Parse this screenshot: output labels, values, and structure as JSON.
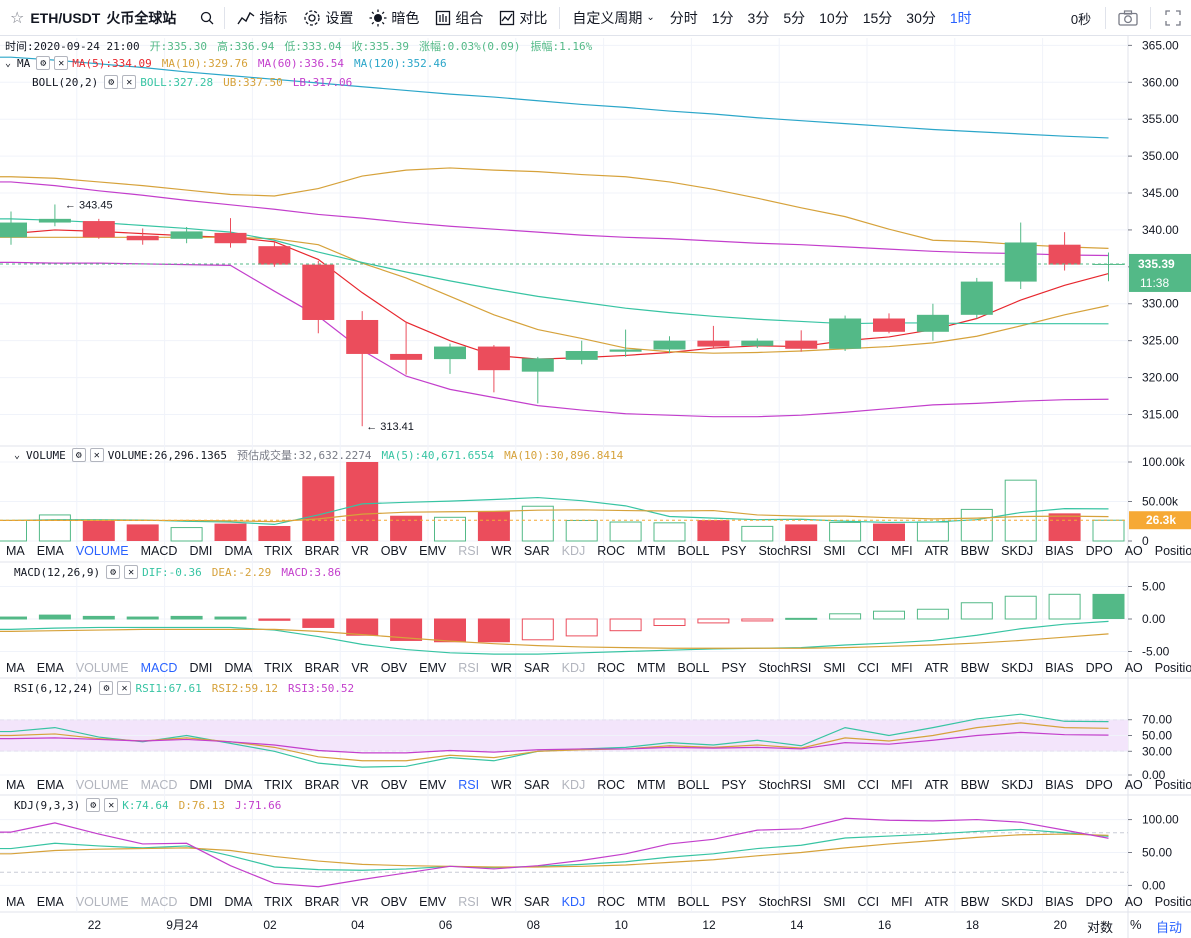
{
  "toolbar": {
    "symbol": "ETH/USDT",
    "exchange": "火币全球站",
    "indicators": "指标",
    "settings": "设置",
    "theme": "暗色",
    "combine": "组合",
    "compare": "对比",
    "custom_period": "自定义周期",
    "periods": [
      "分时",
      "1分",
      "3分",
      "5分",
      "10分",
      "15分",
      "30分",
      "1时"
    ],
    "active_period": "1时",
    "countdown": "0秒"
  },
  "legend": {
    "ohlc": {
      "time_label": "时间:2020-09-24 21:00",
      "open": "开:335.30",
      "high": "高:336.94",
      "low": "低:333.04",
      "close": "收:335.39",
      "change": "涨幅:0.03%(0.09)",
      "amplitude": "振幅:1.16%"
    },
    "ma": {
      "name": "MA",
      "ma5": "MA(5):334.09",
      "ma10": "MA(10):329.76",
      "ma60": "MA(60):336.54",
      "ma120": "MA(120):352.46"
    },
    "boll": {
      "name": "BOLL(20,2)",
      "boll": "BOLL:327.28",
      "ub": "UB:337.50",
      "lb": "LB:317.06"
    },
    "volume": {
      "name": "VOLUME",
      "vol": "VOLUME:26,296.1365",
      "est": "预估成交量:32,632.2274",
      "ma5": "MA(5):40,671.6554",
      "ma10": "MA(10):30,896.8414"
    },
    "macd": {
      "name": "MACD(12,26,9)",
      "dif": "DIF:-0.36",
      "dea": "DEA:-2.29",
      "macd": "MACD:3.86"
    },
    "rsi": {
      "name": "RSI(6,12,24)",
      "rsi1": "RSI1:67.61",
      "rsi2": "RSI2:59.12",
      "rsi3": "RSI3:50.52"
    },
    "kdj": {
      "name": "KDJ(9,3,3)",
      "k": "K:74.64",
      "d": "D:76.13",
      "j": "J:71.66"
    }
  },
  "indicator_tabs": [
    "MA",
    "EMA",
    "VOLUME",
    "MACD",
    "DMI",
    "DMA",
    "TRIX",
    "BRAR",
    "VR",
    "OBV",
    "EMV",
    "RSI",
    "WR",
    "SAR",
    "KDJ",
    "ROC",
    "MTM",
    "BOLL",
    "PSY",
    "StochRSI",
    "SMI",
    "CCI",
    "MFI",
    "ATR",
    "BBW",
    "SKDJ",
    "BIAS",
    "DPO",
    "AO",
    "Position"
  ],
  "footer": {
    "log_label": "对数",
    "pct_label": "%",
    "auto_label": "自动"
  },
  "colors": {
    "up": "#53b987",
    "down": "#eb4d5c",
    "ma5": "#e7272e",
    "ma10": "#d6a23b",
    "ma60": "#c33fcc",
    "ma120": "#2ba6c9",
    "boll": "#38c4a3",
    "accent": "#2962ff"
  },
  "chart_data": [
    {
      "type": "candlestick",
      "title": "ETH/USDT 1H",
      "x_ticks": [
        "22",
        "9月24",
        "02",
        "04",
        "06",
        "08",
        "10",
        "12",
        "14",
        "16",
        "18",
        "20"
      ],
      "ylim": [
        311,
        366
      ],
      "y_ticks": [
        "315.00",
        "320.00",
        "325.00",
        "330.00",
        "335.00",
        "340.00",
        "345.00",
        "350.00",
        "355.00",
        "360.00",
        "365.00"
      ],
      "candles": [
        {
          "o": 339,
          "h": 342.5,
          "l": 338,
          "c": 341
        },
        {
          "o": 341,
          "h": 343.45,
          "l": 340.5,
          "c": 341.5
        },
        {
          "o": 341.2,
          "h": 341.5,
          "l": 338.8,
          "c": 339
        },
        {
          "o": 339.2,
          "h": 340.2,
          "l": 338,
          "c": 338.6
        },
        {
          "o": 338.8,
          "h": 340.4,
          "l": 338.2,
          "c": 339.8
        },
        {
          "o": 339.6,
          "h": 341.6,
          "l": 337.6,
          "c": 338.2
        },
        {
          "o": 337.8,
          "h": 338.5,
          "l": 335,
          "c": 335.3
        },
        {
          "o": 335.3,
          "h": 335.8,
          "l": 326,
          "c": 327.8
        },
        {
          "o": 327.8,
          "h": 329,
          "l": 313.41,
          "c": 323.2
        },
        {
          "o": 323.2,
          "h": 327.6,
          "l": 320.4,
          "c": 322.4
        },
        {
          "o": 322.5,
          "h": 324.6,
          "l": 320.5,
          "c": 324.2
        },
        {
          "o": 324.2,
          "h": 324.4,
          "l": 318,
          "c": 321
        },
        {
          "o": 320.8,
          "h": 322.8,
          "l": 316.5,
          "c": 322.6
        },
        {
          "o": 322.4,
          "h": 325,
          "l": 321.8,
          "c": 323.6
        },
        {
          "o": 323.5,
          "h": 326.5,
          "l": 322.8,
          "c": 323.8
        },
        {
          "o": 323.8,
          "h": 325.6,
          "l": 323.3,
          "c": 325
        },
        {
          "o": 325,
          "h": 327,
          "l": 324,
          "c": 324.2
        },
        {
          "o": 324.3,
          "h": 325.3,
          "l": 324,
          "c": 325
        },
        {
          "o": 325,
          "h": 326.4,
          "l": 323.5,
          "c": 323.9
        },
        {
          "o": 323.9,
          "h": 328.4,
          "l": 323.6,
          "c": 328
        },
        {
          "o": 328,
          "h": 328.7,
          "l": 326,
          "c": 326.2
        },
        {
          "o": 326.2,
          "h": 330,
          "l": 325,
          "c": 328.5
        },
        {
          "o": 328.5,
          "h": 333.5,
          "l": 328,
          "c": 333
        },
        {
          "o": 333,
          "h": 341,
          "l": 332,
          "c": 338.3
        },
        {
          "o": 338,
          "h": 339.7,
          "l": 334.5,
          "c": 335.3
        },
        {
          "o": 335.3,
          "h": 336.94,
          "l": 333.04,
          "c": 335.39
        }
      ],
      "annotations": {
        "high": "343.45",
        "low": "313.41",
        "last_price": "335.39",
        "time_left": "11:38"
      },
      "series": [
        {
          "name": "MA5",
          "values": [
            339.5,
            340,
            339.8,
            339.5,
            339.2,
            339.0,
            338.4,
            336.0,
            331.5,
            327.5,
            325.0,
            323.0,
            322.5,
            322.7,
            323.0,
            323.4,
            324.0,
            324.3,
            324.2,
            325.0,
            325.5,
            326.5,
            328.0,
            330.5,
            332.5,
            334.09
          ]
        },
        {
          "name": "MA10",
          "values": [
            339.0,
            339.0,
            339.0,
            339.0,
            339.0,
            339.0,
            338.8,
            338.0,
            335.5,
            333.5,
            331.0,
            328.5,
            326.5,
            325.3,
            324.0,
            323.5,
            323.3,
            323.4,
            323.6,
            323.9,
            324.2,
            324.7,
            325.6,
            327.0,
            328.5,
            329.76
          ]
        },
        {
          "name": "MA60",
          "values": [
            346.5,
            346.0,
            345.3,
            344.7,
            344.0,
            343.4,
            342.8,
            342.1,
            341.6,
            341.0,
            340.5,
            340.1,
            339.7,
            339.3,
            339.0,
            338.8,
            338.5,
            338.2,
            338.0,
            337.7,
            337.4,
            337.1,
            336.9,
            336.8,
            336.6,
            336.54
          ]
        },
        {
          "name": "MA120",
          "values": [
            363.4,
            363.0,
            362.5,
            362.0,
            361.4,
            360.9,
            360.4,
            359.9,
            359.4,
            358.9,
            358.4,
            358.0,
            357.5,
            357.0,
            356.6,
            356.1,
            355.7,
            355.2,
            354.8,
            354.4,
            354.0,
            353.6,
            353.3,
            353.0,
            352.7,
            352.46
          ]
        },
        {
          "name": "BOLL",
          "values": [
            341.5,
            341.3,
            341.0,
            340.6,
            340.2,
            339.7,
            338.6,
            337.0,
            335.6,
            334.3,
            333.1,
            332.0,
            331.0,
            330.2,
            329.4,
            328.8,
            328.3,
            327.9,
            327.6,
            327.3,
            327.4,
            327.4,
            327.3,
            327.3,
            327.3,
            327.28
          ]
        },
        {
          "name": "UB",
          "values": [
            347.2,
            347.0,
            346.5,
            346.0,
            345.4,
            344.8,
            344.6,
            345.6,
            347.3,
            348.1,
            348.4,
            348.1,
            347.9,
            347.5,
            347.2,
            346.5,
            345.5,
            344.3,
            343.0,
            341.8,
            340.1,
            338.6,
            338.4,
            338.0,
            337.7,
            337.5
          ]
        },
        {
          "name": "LB",
          "values": [
            335.6,
            335.5,
            335.5,
            335.4,
            335.3,
            335.2,
            331.7,
            328.3,
            323.7,
            320.2,
            318.4,
            317.3,
            316.2,
            315.6,
            315.1,
            314.9,
            314.7,
            314.7,
            314.9,
            315.3,
            315.8,
            316.3,
            316.5,
            316.8,
            317.0,
            317.06
          ]
        }
      ]
    },
    {
      "type": "bar",
      "title": "VOLUME",
      "ylim": [
        0,
        100000
      ],
      "y_ticks": [
        "0",
        "50.00k",
        "100.00k"
      ],
      "last_label": "26.3k",
      "values": [
        26000,
        33000,
        26500,
        21000,
        17000,
        22000,
        19000,
        82000,
        100000,
        32000,
        30000,
        38000,
        44000,
        26000,
        24000,
        23000,
        26500,
        18500,
        21000,
        23500,
        22000,
        24000,
        40000,
        77000,
        35000,
        26296
      ],
      "series": [
        {
          "name": "MA5",
          "values": [
            26000,
            27000,
            27000,
            26500,
            25000,
            24000,
            21000,
            33000,
            47000,
            49000,
            50500,
            52500,
            55000,
            51000,
            44500,
            31000,
            29000,
            27000,
            27500,
            25000,
            23500,
            24000,
            27000,
            36000,
            41000,
            40671
          ]
        },
        {
          "name": "MA10",
          "values": [
            26000,
            26000,
            26000,
            26000,
            26000,
            25500,
            24500,
            28000,
            34000,
            36500,
            37000,
            37500,
            39000,
            39500,
            38500,
            38000,
            38500,
            33000,
            31500,
            31500,
            29500,
            28000,
            29000,
            31000,
            31500,
            30896
          ]
        }
      ]
    },
    {
      "type": "bar",
      "title": "MACD(12,26,9)",
      "ylim": [
        -6,
        6
      ],
      "y_ticks": [
        "-5.00",
        "0.00",
        "5.00"
      ],
      "values": [
        0.3,
        0.6,
        0.4,
        0.3,
        0.4,
        0.3,
        -0.2,
        -1.3,
        -2.5,
        -3.3,
        -3.5,
        -3.5,
        -3.2,
        -2.6,
        -1.8,
        -1.0,
        -0.6,
        -0.3,
        0.1,
        0.8,
        1.2,
        1.5,
        2.5,
        3.5,
        3.8,
        3.86
      ],
      "series": [
        {
          "name": "DIF",
          "values": [
            -1.6,
            -1.4,
            -1.3,
            -1.3,
            -1.3,
            -1.3,
            -1.7,
            -2.7,
            -3.9,
            -4.7,
            -5.2,
            -5.4,
            -5.4,
            -5.2,
            -5.0,
            -4.8,
            -4.6,
            -4.5,
            -4.4,
            -4.0,
            -3.7,
            -3.3,
            -2.5,
            -1.5,
            -0.8,
            -0.36
          ]
        },
        {
          "name": "DEA",
          "values": [
            -1.9,
            -1.8,
            -1.7,
            -1.6,
            -1.6,
            -1.6,
            -1.6,
            -1.9,
            -2.4,
            -2.9,
            -3.4,
            -3.8,
            -4.1,
            -4.3,
            -4.4,
            -4.5,
            -4.5,
            -4.5,
            -4.5,
            -4.4,
            -4.2,
            -4.0,
            -3.7,
            -3.3,
            -2.8,
            -2.29
          ]
        }
      ]
    },
    {
      "type": "line",
      "title": "RSI(6,12,24)",
      "ylim": [
        0,
        100
      ],
      "y_ticks": [
        "0.00",
        "30.00",
        "50.00",
        "70.00"
      ],
      "series": [
        {
          "name": "RSI1",
          "values": [
            55,
            60,
            48,
            42,
            50,
            40,
            30,
            15,
            10,
            11,
            22,
            18,
            30,
            33,
            35,
            41,
            38,
            44,
            37,
            60,
            50,
            60,
            71,
            77,
            68,
            67.61
          ]
        },
        {
          "name": "RSI2",
          "values": [
            50,
            52,
            46,
            43,
            47,
            42,
            35,
            23,
            18,
            18,
            25,
            22,
            30,
            32,
            33,
            37,
            35,
            38,
            34,
            47,
            43,
            50,
            60,
            66,
            60,
            59.12
          ]
        },
        {
          "name": "RSI3",
          "values": [
            46,
            47,
            45,
            43,
            45,
            42,
            38,
            31,
            28,
            28,
            31,
            29,
            32,
            33,
            33,
            35,
            34,
            35,
            33,
            41,
            39,
            44,
            50,
            54,
            51,
            50.52
          ]
        }
      ]
    },
    {
      "type": "line",
      "title": "KDJ(9,3,3)",
      "ylim": [
        -10,
        110
      ],
      "y_ticks": [
        "0.00",
        "50.00",
        "100.00"
      ],
      "series": [
        {
          "name": "K",
          "values": [
            56,
            64,
            60,
            57,
            60,
            45,
            28,
            24,
            23,
            25,
            29,
            27,
            29,
            32,
            36,
            43,
            48,
            56,
            61,
            72,
            75,
            78,
            82,
            85,
            80,
            74.64
          ]
        },
        {
          "name": "D",
          "values": [
            48,
            53,
            55,
            56,
            57,
            53,
            44,
            37,
            32,
            30,
            29,
            28,
            28,
            29,
            31,
            35,
            39,
            45,
            50,
            57,
            63,
            68,
            73,
            77,
            78,
            76.13
          ]
        },
        {
          "name": "J",
          "values": [
            81,
            95,
            78,
            63,
            64,
            30,
            3,
            -2,
            9,
            19,
            29,
            25,
            30,
            38,
            48,
            63,
            70,
            84,
            86,
            102,
            99,
            98,
            100,
            96,
            84,
            71.66
          ]
        }
      ]
    }
  ]
}
